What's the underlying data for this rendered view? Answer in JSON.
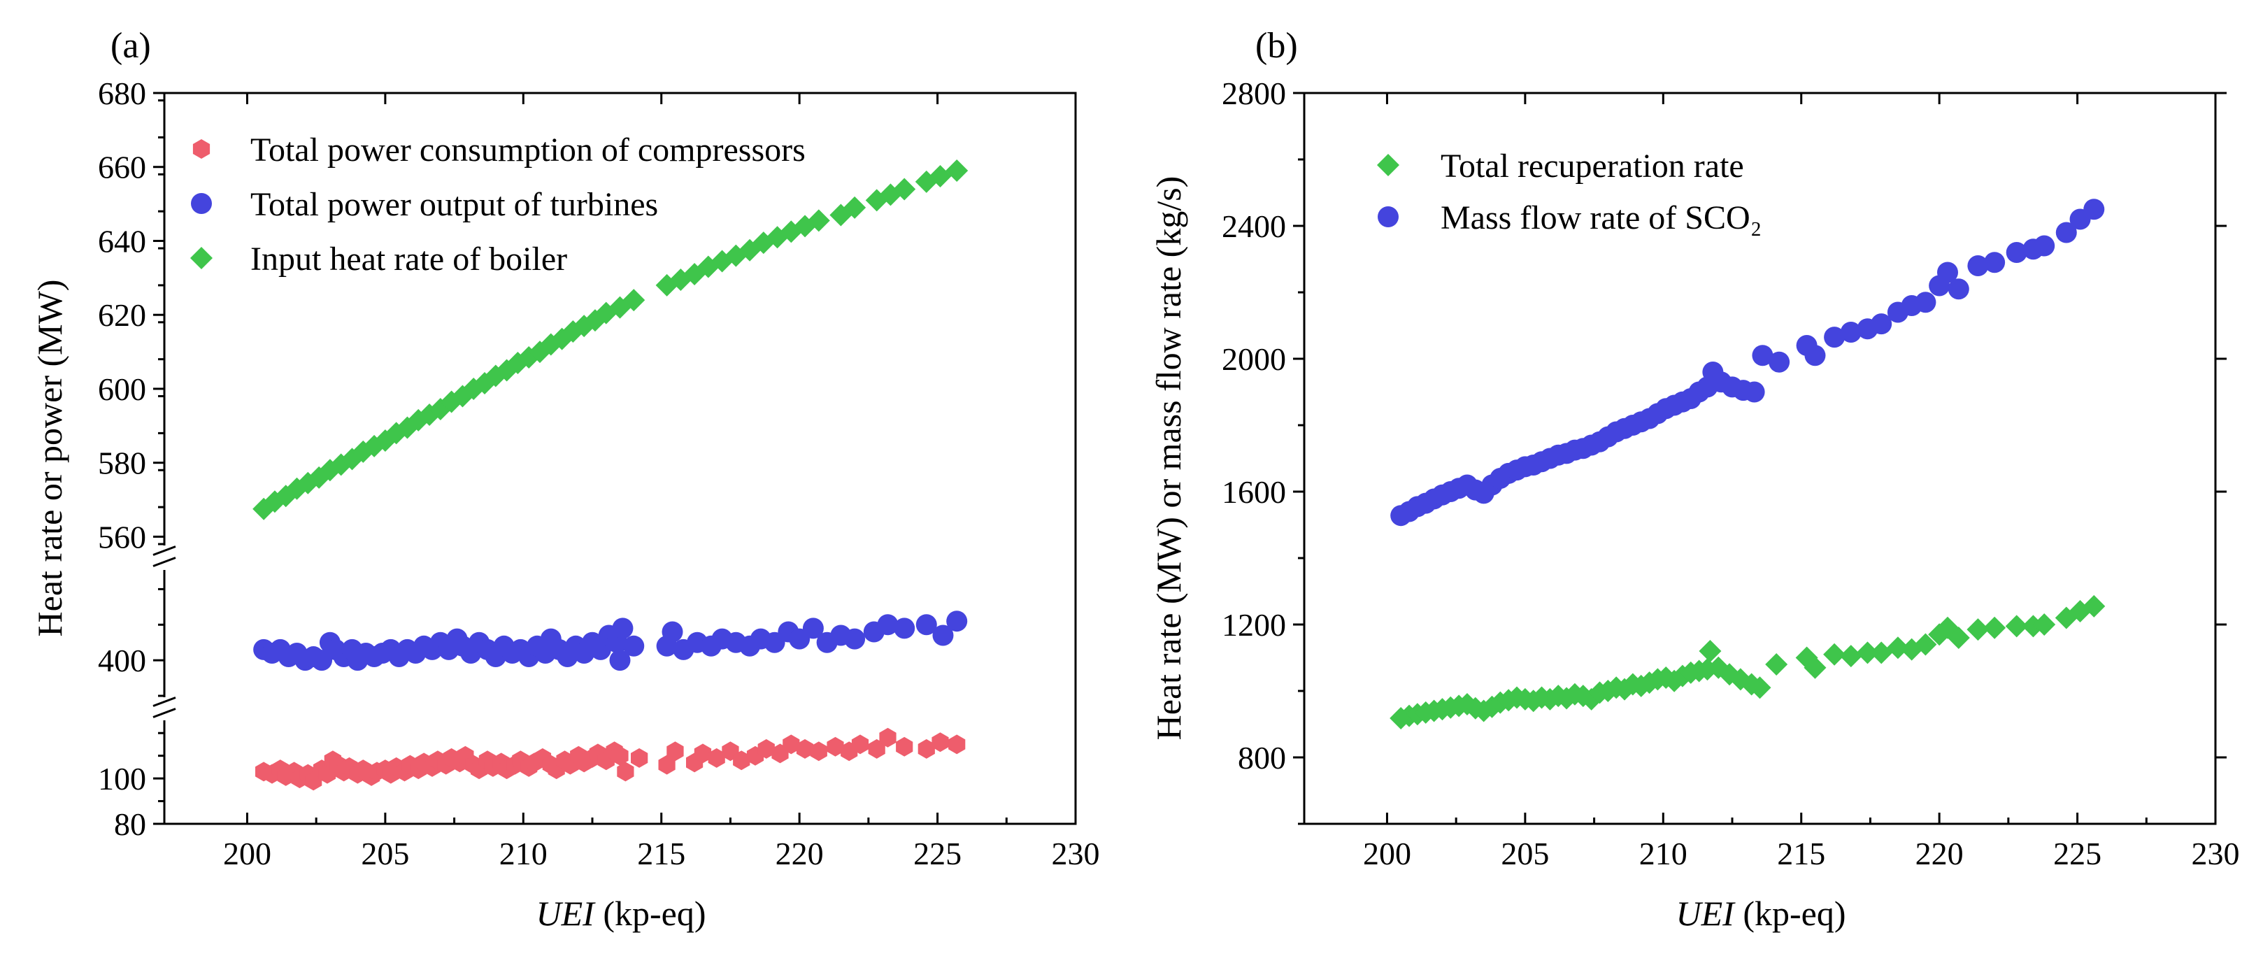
{
  "chart_data": [
    {
      "panel_label": "(a)",
      "type": "scatter",
      "xlabel_italic": "UEI",
      "xlabel_rest": " (kp-eq)",
      "ylabel": "Heat rate or power (MW)",
      "xlim": [
        197,
        230
      ],
      "xticks": [
        200,
        205,
        210,
        215,
        220,
        225,
        230
      ],
      "broken_axis": true,
      "segments": [
        {
          "range": [
            80,
            125
          ],
          "ticks": [
            80,
            100
          ]
        },
        {
          "range": [
            390,
            425
          ],
          "ticks": [
            400
          ]
        },
        {
          "range": [
            558,
            680
          ],
          "ticks": [
            560,
            580,
            600,
            620,
            640,
            660,
            680
          ]
        }
      ],
      "legend_position": "top-left",
      "series": [
        {
          "name": "Total power consumption of compressors",
          "marker": "hexagon",
          "color": "#ee5d6c",
          "x": [
            200.6,
            200.9,
            201.2,
            201.4,
            201.7,
            201.9,
            202.2,
            202.4,
            202.7,
            202.9,
            203.1,
            203.3,
            203.5,
            203.7,
            204.0,
            204.2,
            204.5,
            204.7,
            205.0,
            205.2,
            205.4,
            205.7,
            205.9,
            206.2,
            206.4,
            206.7,
            206.9,
            207.2,
            207.4,
            207.7,
            207.9,
            208.2,
            208.4,
            208.7,
            208.9,
            209.2,
            209.4,
            209.7,
            209.9,
            210.2,
            210.4,
            210.7,
            211.0,
            211.2,
            211.5,
            211.7,
            212.0,
            212.2,
            212.5,
            212.7,
            213.0,
            213.3,
            213.5,
            213.7,
            214.2,
            215.2,
            215.5,
            216.2,
            216.5,
            217.0,
            217.5,
            217.9,
            218.4,
            218.8,
            219.3,
            219.7,
            220.2,
            220.7,
            221.3,
            221.8,
            222.2,
            222.8,
            223.2,
            223.8,
            224.6,
            225.1,
            225.7
          ],
          "y": [
            103,
            102,
            104,
            101,
            103,
            100,
            102,
            99,
            104,
            102,
            108,
            106,
            103,
            105,
            102,
            104,
            101,
            103,
            104,
            102,
            105,
            103,
            106,
            104,
            107,
            105,
            108,
            106,
            109,
            107,
            110,
            106,
            104,
            108,
            105,
            107,
            104,
            106,
            108,
            105,
            107,
            109,
            106,
            104,
            108,
            106,
            110,
            107,
            109,
            111,
            108,
            112,
            110,
            103,
            109,
            106,
            112,
            107,
            111,
            109,
            112,
            108,
            110,
            113,
            111,
            115,
            113,
            112,
            114,
            112,
            115,
            113,
            118,
            114,
            113,
            116,
            115
          ]
        },
        {
          "name": "Total power output of turbines",
          "marker": "circle",
          "color": "#4444dd",
          "x": [
            200.6,
            200.9,
            201.2,
            201.5,
            201.8,
            202.1,
            202.4,
            202.7,
            203.0,
            203.2,
            203.5,
            203.8,
            204.0,
            204.3,
            204.6,
            204.9,
            205.2,
            205.5,
            205.8,
            206.1,
            206.4,
            206.7,
            207.0,
            207.3,
            207.6,
            207.8,
            208.1,
            208.4,
            208.7,
            209.0,
            209.3,
            209.6,
            209.9,
            210.2,
            210.5,
            210.8,
            211.0,
            211.3,
            211.6,
            211.9,
            212.2,
            212.5,
            212.8,
            213.1,
            213.4,
            213.5,
            213.6,
            214.0,
            215.2,
            215.4,
            215.8,
            216.3,
            216.8,
            217.2,
            217.7,
            218.2,
            218.6,
            219.1,
            219.6,
            220.0,
            220.5,
            221.0,
            221.5,
            222.0,
            222.7,
            223.2,
            223.8,
            224.6,
            225.2,
            225.7
          ],
          "y": [
            403,
            402,
            403,
            401,
            402,
            400,
            401,
            400,
            405,
            403,
            401,
            403,
            400,
            402,
            401,
            402,
            403,
            401,
            403,
            402,
            404,
            403,
            405,
            403,
            406,
            404,
            402,
            405,
            403,
            401,
            404,
            402,
            403,
            401,
            404,
            402,
            406,
            403,
            401,
            404,
            402,
            405,
            403,
            407,
            405,
            400,
            409,
            404,
            404,
            408,
            403,
            405,
            404,
            406,
            405,
            404,
            406,
            405,
            408,
            406,
            409,
            405,
            407,
            406,
            408,
            410,
            409,
            410,
            407,
            411
          ]
        },
        {
          "name": "Input heat rate of boiler",
          "marker": "diamond",
          "color": "#3fc54b",
          "x": [
            200.6,
            201.0,
            201.4,
            201.8,
            202.2,
            202.6,
            203.0,
            203.4,
            203.8,
            204.2,
            204.6,
            205.0,
            205.4,
            205.8,
            206.2,
            206.6,
            207.0,
            207.4,
            207.8,
            208.2,
            208.6,
            209.0,
            209.4,
            209.8,
            210.2,
            210.6,
            211.0,
            211.4,
            211.8,
            212.2,
            212.6,
            213.0,
            213.5,
            214.0,
            215.2,
            215.7,
            216.2,
            216.7,
            217.2,
            217.7,
            218.2,
            218.7,
            219.2,
            219.7,
            220.2,
            220.7,
            221.5,
            222.0,
            222.8,
            223.3,
            223.8,
            224.6,
            225.1,
            225.7
          ],
          "y": [
            567.5,
            569.5,
            571,
            573,
            574.5,
            576,
            578,
            579.5,
            581,
            583,
            584.5,
            586,
            588,
            589.5,
            591.5,
            593,
            594.5,
            596.5,
            598,
            600,
            601.5,
            603.5,
            605,
            607,
            608.5,
            610,
            612,
            613.5,
            615.5,
            617,
            618.5,
            620.5,
            622,
            624,
            628,
            629.5,
            631,
            633,
            634.5,
            636,
            637.5,
            639.5,
            641,
            642.5,
            644,
            645.5,
            647,
            649,
            651,
            652.5,
            654,
            656,
            657.5,
            659
          ]
        }
      ]
    },
    {
      "panel_label": "(b)",
      "type": "scatter",
      "xlabel_italic": "UEI",
      "xlabel_rest": " (kp-eq)",
      "ylabel": "Heat rate (MW) or mass flow rate (kg/s)",
      "xlim": [
        197,
        230
      ],
      "xticks": [
        200,
        205,
        210,
        215,
        220,
        225,
        230
      ],
      "ylim": [
        600,
        2800
      ],
      "yticks": [
        800,
        1200,
        1600,
        2000,
        2400,
        2800
      ],
      "legend_position": "top-left",
      "series": [
        {
          "name": "Total recuperation rate",
          "marker": "diamond",
          "color": "#3fc54b",
          "x": [
            200.5,
            200.8,
            201.1,
            201.4,
            201.7,
            202.0,
            202.3,
            202.6,
            202.9,
            203.2,
            203.5,
            203.8,
            204.1,
            204.4,
            204.7,
            205.0,
            205.3,
            205.6,
            205.9,
            206.2,
            206.5,
            206.8,
            207.1,
            207.4,
            207.7,
            208.0,
            208.3,
            208.6,
            208.9,
            209.2,
            209.5,
            209.8,
            210.1,
            210.4,
            210.7,
            211.0,
            211.3,
            211.6,
            211.7,
            212.0,
            212.4,
            212.8,
            213.2,
            213.5,
            214.1,
            215.2,
            215.5,
            216.2,
            216.8,
            217.4,
            217.9,
            218.5,
            219.0,
            219.5,
            220.0,
            220.3,
            220.7,
            221.4,
            222.0,
            222.8,
            223.4,
            223.8,
            224.6,
            225.1,
            225.6
          ],
          "y": [
            918,
            925,
            930,
            935,
            940,
            945,
            950,
            955,
            960,
            948,
            940,
            952,
            965,
            972,
            980,
            975,
            970,
            980,
            975,
            985,
            978,
            990,
            985,
            975,
            995,
            1000,
            1010,
            1005,
            1020,
            1015,
            1025,
            1035,
            1040,
            1030,
            1045,
            1055,
            1060,
            1065,
            1120,
            1070,
            1050,
            1035,
            1020,
            1010,
            1080,
            1100,
            1070,
            1110,
            1105,
            1115,
            1115,
            1130,
            1125,
            1140,
            1170,
            1190,
            1160,
            1185,
            1190,
            1195,
            1195,
            1200,
            1220,
            1240,
            1255
          ]
        },
        {
          "name": "Mass flow rate of SCO₂",
          "marker": "circle",
          "color": "#4444dd",
          "x": [
            200.5,
            200.8,
            201.1,
            201.4,
            201.7,
            202.0,
            202.3,
            202.6,
            202.9,
            203.2,
            203.5,
            203.8,
            204.1,
            204.4,
            204.7,
            205.0,
            205.3,
            205.6,
            205.9,
            206.2,
            206.5,
            206.8,
            207.1,
            207.4,
            207.7,
            208.0,
            208.3,
            208.6,
            208.9,
            209.2,
            209.5,
            209.8,
            210.1,
            210.4,
            210.7,
            211.0,
            211.3,
            211.6,
            211.8,
            212.1,
            212.5,
            212.9,
            213.3,
            213.6,
            214.2,
            215.2,
            215.5,
            216.2,
            216.8,
            217.4,
            217.9,
            218.5,
            219.0,
            219.5,
            220.0,
            220.3,
            220.7,
            221.4,
            222.0,
            222.8,
            223.4,
            223.8,
            224.6,
            225.1,
            225.6
          ],
          "y": [
            1528,
            1540,
            1555,
            1565,
            1578,
            1590,
            1600,
            1610,
            1620,
            1605,
            1595,
            1620,
            1640,
            1655,
            1665,
            1675,
            1680,
            1690,
            1700,
            1710,
            1715,
            1725,
            1730,
            1740,
            1750,
            1765,
            1780,
            1790,
            1800,
            1810,
            1820,
            1835,
            1850,
            1860,
            1870,
            1880,
            1900,
            1915,
            1960,
            1930,
            1915,
            1905,
            1900,
            2010,
            1990,
            2040,
            2010,
            2065,
            2080,
            2090,
            2105,
            2140,
            2160,
            2170,
            2220,
            2260,
            2210,
            2280,
            2290,
            2320,
            2330,
            2340,
            2380,
            2420,
            2450
          ]
        }
      ]
    }
  ]
}
